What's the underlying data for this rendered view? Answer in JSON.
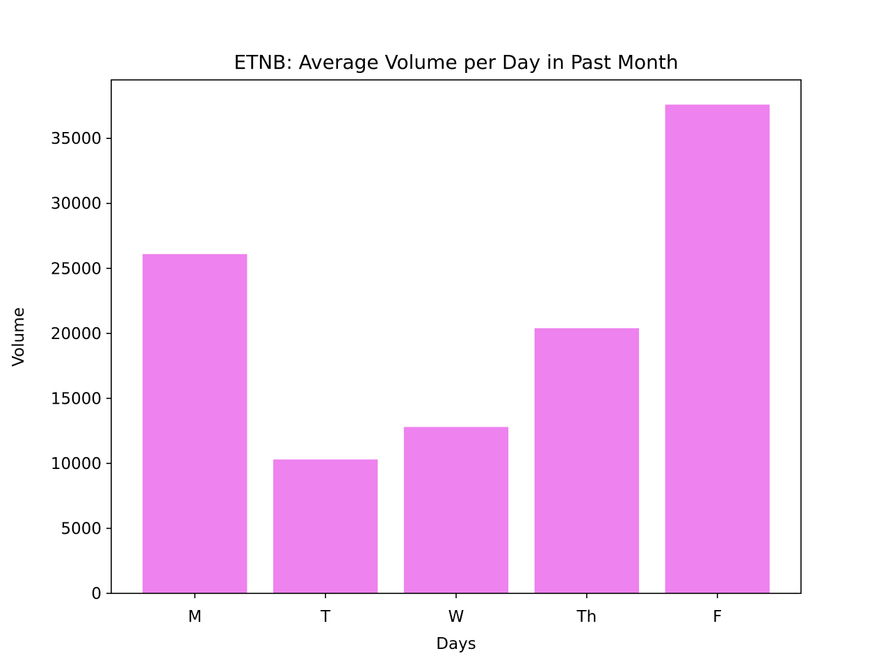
{
  "chart_data": {
    "type": "bar",
    "title": "ETNB: Average Volume per Day in Past Month",
    "xlabel": "Days",
    "ylabel": "Volume",
    "categories": [
      "M",
      "T",
      "W",
      "Th",
      "F"
    ],
    "values": [
      26100,
      10300,
      12800,
      20400,
      37600
    ],
    "ylim": [
      0,
      39500
    ],
    "yticks": [
      0,
      5000,
      10000,
      15000,
      20000,
      25000,
      30000,
      35000
    ],
    "grid": false,
    "bar_color": "#ee82ee"
  }
}
